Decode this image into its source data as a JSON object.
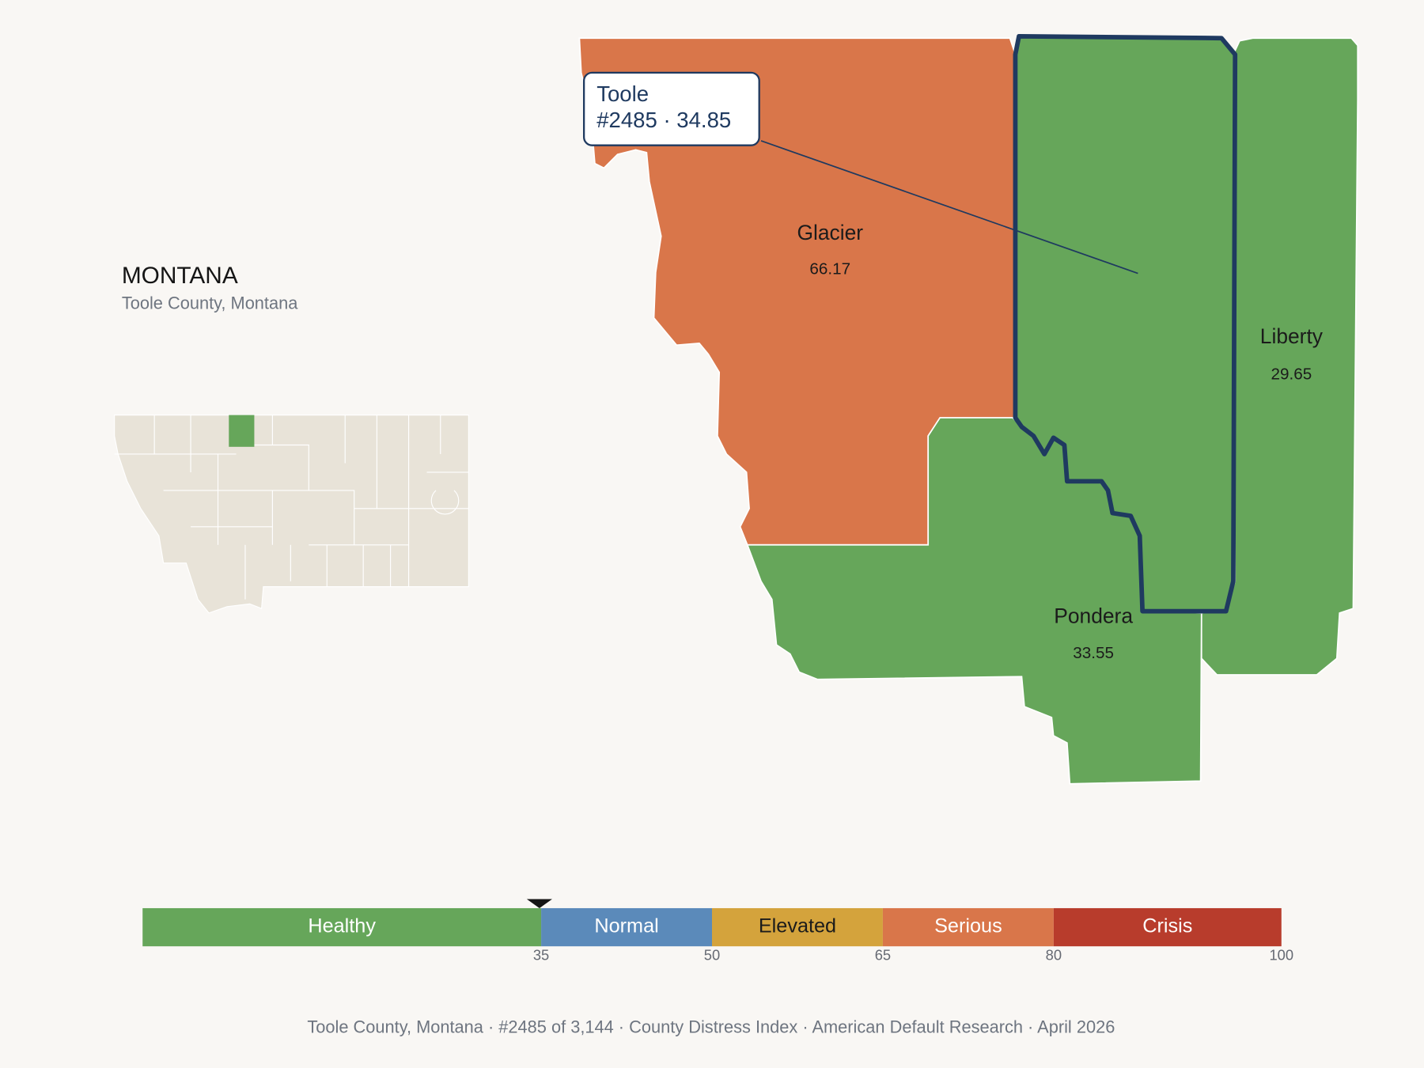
{
  "header": {
    "title": "MONTANA",
    "subtitle": "Toole County, Montana"
  },
  "callout": {
    "county": "Toole",
    "text": "#2485 · 34.85"
  },
  "counties": [
    {
      "name": "Glacier",
      "value": 66.17,
      "color": "#d9764a"
    },
    {
      "name": "Liberty",
      "value": 29.65,
      "color": "#66a65a"
    },
    {
      "name": "Pondera",
      "value": 33.55,
      "color": "#66a65a"
    },
    {
      "name": "Toole",
      "value": 34.85,
      "color": "#66a65a",
      "selected": true
    }
  ],
  "scale": {
    "xlim": [
      0,
      100
    ],
    "ticks": [
      35,
      50,
      65,
      80,
      100
    ],
    "marker": 34.85,
    "bands": [
      {
        "label": "Healthy",
        "color": "#66a65a",
        "text_color": "#ffffff"
      },
      {
        "label": "Normal",
        "color": "#5b8aba",
        "text_color": "#ffffff"
      },
      {
        "label": "Elevated",
        "color": "#d4a33c",
        "text_color": "#1b1b1b"
      },
      {
        "label": "Serious",
        "color": "#d9764a",
        "text_color": "#ffffff"
      },
      {
        "label": "Crisis",
        "color": "#b83c2c",
        "text_color": "#ffffff"
      }
    ]
  },
  "footer": "Toole County, Montana  ·  #2485 of 3,144  ·  County Distress Index  ·  American Default Research  ·  April 2026"
}
